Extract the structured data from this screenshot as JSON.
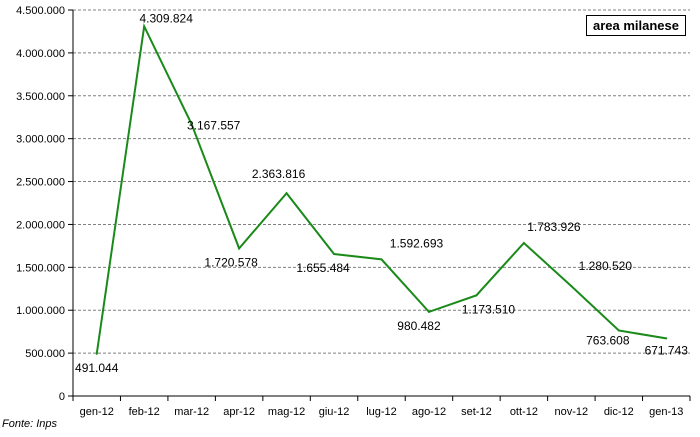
{
  "chart_data": {
    "type": "line",
    "legend": "area milanese",
    "categories": [
      "gen-12",
      "feb-12",
      "mar-12",
      "apr-12",
      "mag-12",
      "giu-12",
      "lug-12",
      "ago-12",
      "set-12",
      "ott-12",
      "nov-12",
      "dic-12",
      "gen-13"
    ],
    "series": [
      {
        "values": [
          491044,
          4309824,
          3167557,
          1720578,
          2363816,
          1655484,
          1592693,
          980482,
          1173510,
          1783926,
          1280520,
          763608,
          671743
        ],
        "labels": [
          "491.044",
          "4.309.824",
          "3.167.557",
          "1.720.578",
          "2.363.816",
          "1.655.484",
          "1.592.693",
          "980.482",
          "1.173.510",
          "1.783.926",
          "1.280.520",
          "763.608",
          "671.743"
        ],
        "color": "#1a8a1a"
      }
    ],
    "ylim": [
      0,
      4500000
    ],
    "yticks": [
      0,
      500000,
      1000000,
      1500000,
      2000000,
      2500000,
      3000000,
      3500000,
      4000000,
      4500000
    ],
    "ytick_labels": [
      "0",
      "500.000",
      "1.000.000",
      "1.500.000",
      "2.000.000",
      "2.500.000",
      "3.000.000",
      "3.500.000",
      "4.000.000",
      "4.500.000"
    ],
    "grid": true,
    "legend_position": "top-right"
  },
  "source": "Fonte: Inps"
}
